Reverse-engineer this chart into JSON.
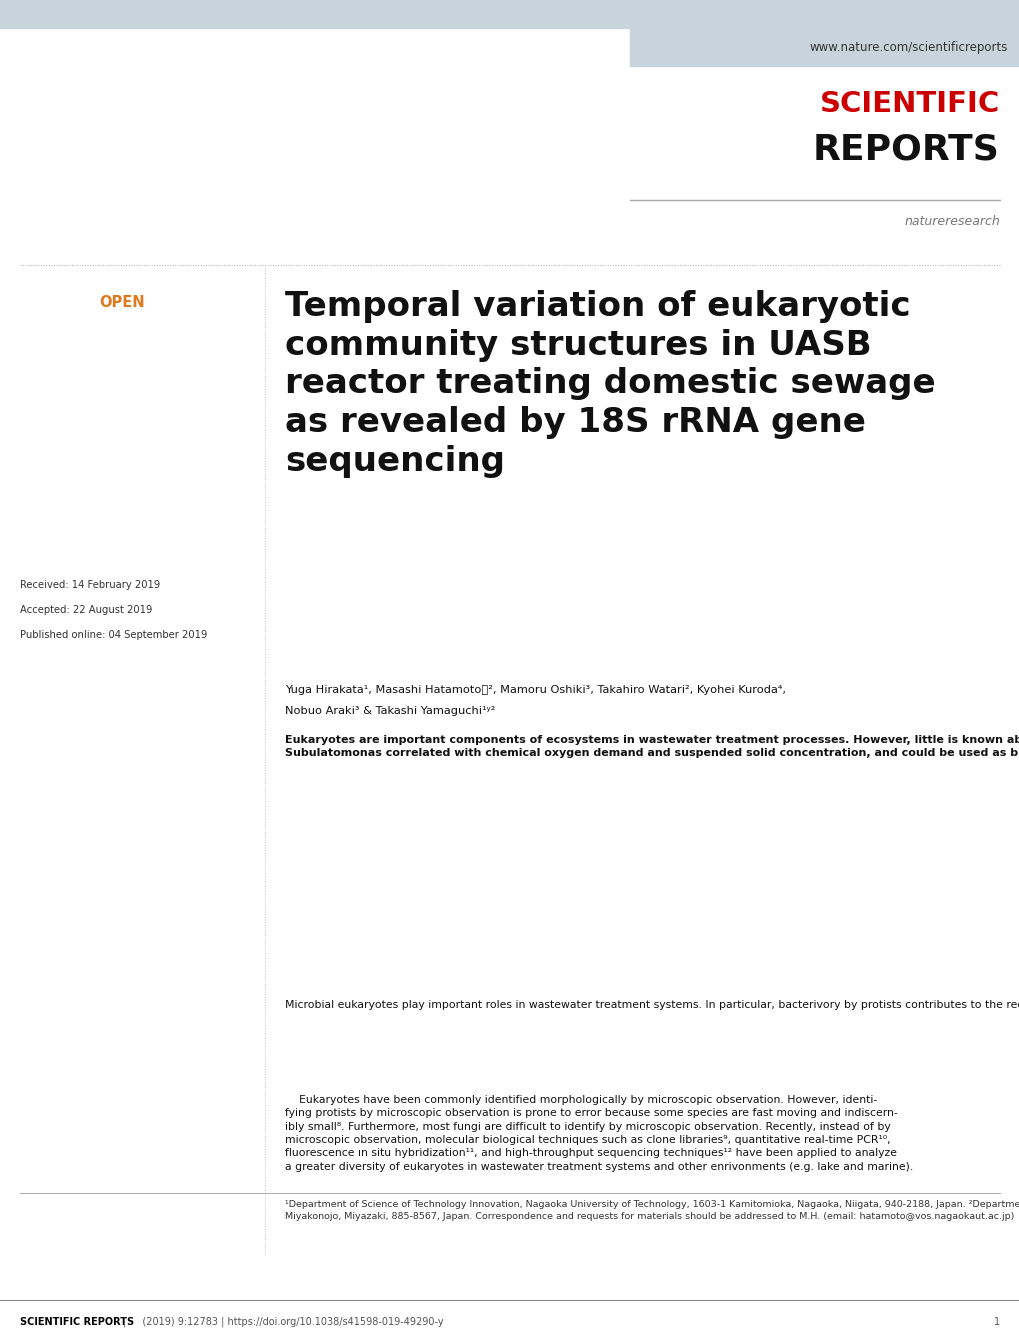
{
  "bg_color": "#ffffff",
  "header_bar_color": "#c8d4dc",
  "url_text": "www.nature.com/scientificreports",
  "scientific_text": "SCIENTIFIC",
  "reports_text": "REPORTS",
  "natureresearch_text": "natureresearch",
  "open_text": "OPEN",
  "open_color": "#e07820",
  "scientific_color": "#cc0000",
  "reports_color": "#111111",
  "title_color": "#111111",
  "received_text": "Received: 14 February 2019",
  "accepted_text": "Accepted: 22 August 2019",
  "published_text": "Published online: 04 September 2019",
  "authors_line1": "Yuga Hirakata¹, Masashi Hatamotoⓘ², Mamoru Oshiki³, Takahiro Watari², Kyohei Kuroda⁴,",
  "authors_line2": "Nobuo Araki³ & Takashi Yamaguchi¹ʸ²",
  "footer_bold": "SCIENTIFIC REPORTS",
  "footer_pipe": "|",
  "footer_journal": "   (2019) 9:12783 | https://doi.org/10.1038/s41598-019-49290-y",
  "footer_page": "1"
}
